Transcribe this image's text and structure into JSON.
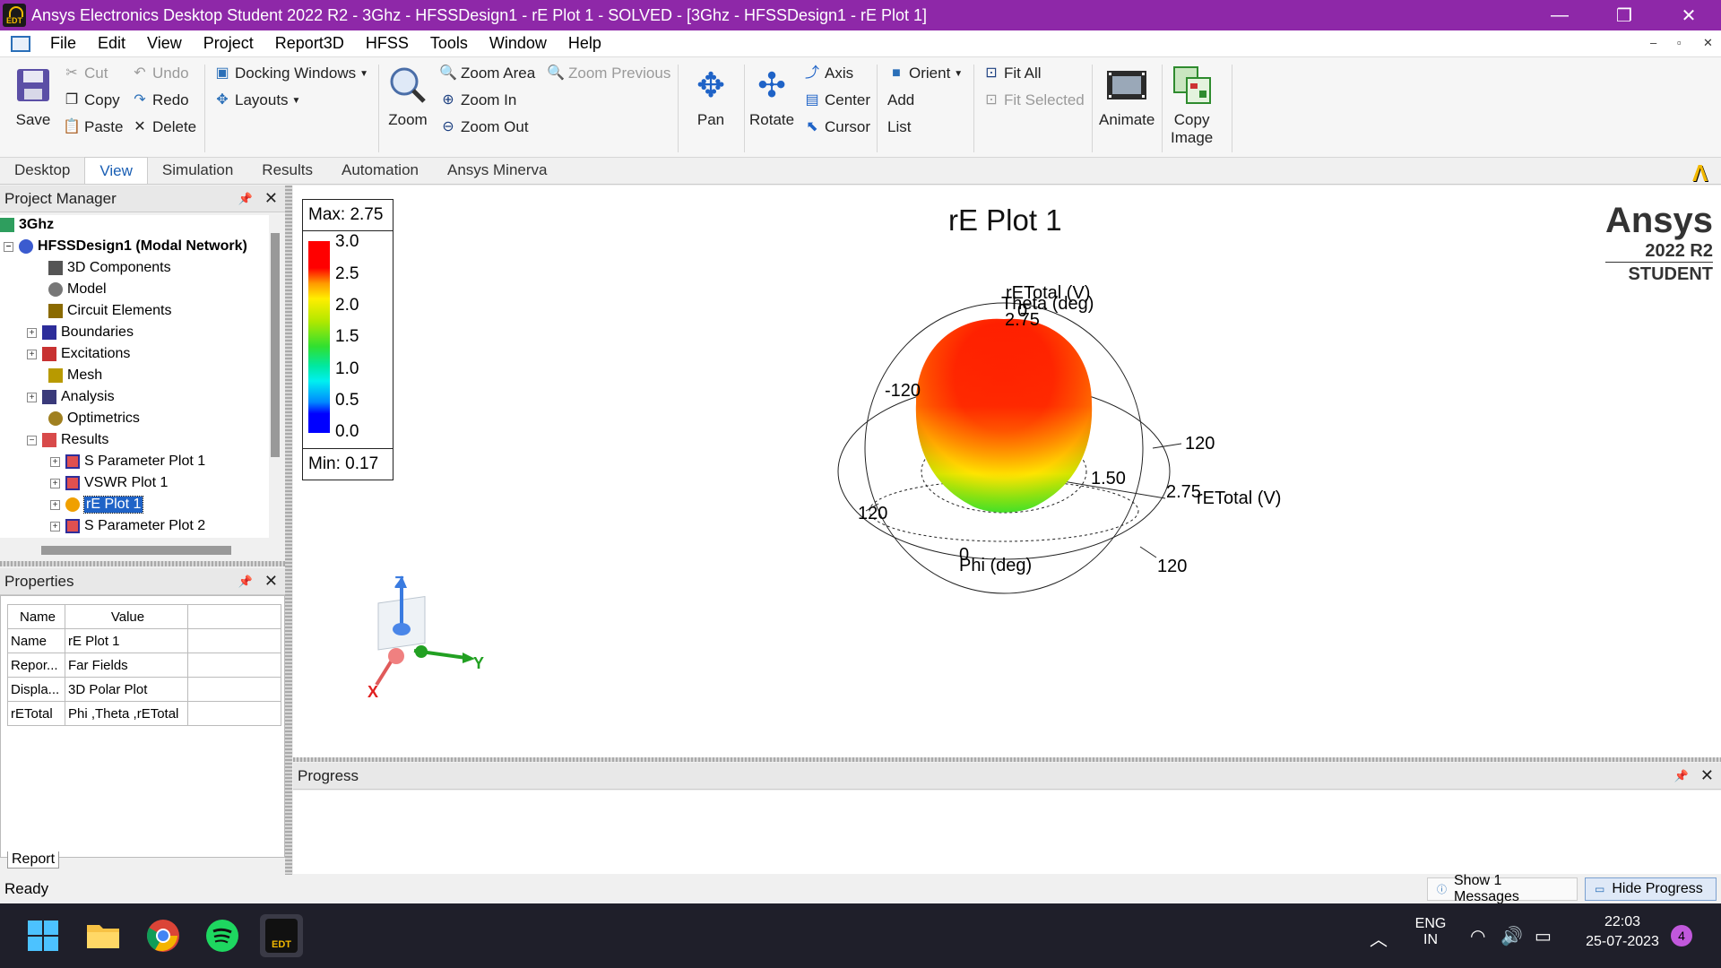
{
  "window": {
    "title": "Ansys Electronics Desktop Student 2022 R2 - 3Ghz - HFSSDesign1 - rE Plot 1 - SOLVED - [3Ghz - HFSSDesign1 - rE Plot 1]",
    "app_icon_text": "EDT",
    "minimize": "—",
    "restore": "❐",
    "close": "✕"
  },
  "menu": [
    "File",
    "Edit",
    "View",
    "Project",
    "Report3D",
    "HFSS",
    "Tools",
    "Window",
    "Help"
  ],
  "mdi_controls": {
    "minimize": "–",
    "restore": "▫",
    "close": "✕"
  },
  "ribbon": {
    "save": "Save",
    "cut": "Cut",
    "copy": "Copy",
    "paste": "Paste",
    "undo": "Undo",
    "redo": "Redo",
    "delete": "Delete",
    "docking_windows": "Docking Windows",
    "layouts": "Layouts",
    "zoom": "Zoom",
    "zoom_area": "Zoom Area",
    "zoom_in": "Zoom In",
    "zoom_out": "Zoom Out",
    "zoom_previous": "Zoom Previous",
    "pan": "Pan",
    "rotate": "Rotate",
    "axis": "Axis",
    "center": "Center",
    "cursor": "Cursor",
    "orient": "Orient",
    "add": "Add",
    "list": "List",
    "fit_all": "Fit All",
    "fit_selected": "Fit Selected",
    "animate": "Animate",
    "copy_image_1": "Copy",
    "copy_image_2": "Image"
  },
  "tabs": [
    "Desktop",
    "View",
    "Simulation",
    "Results",
    "Automation",
    "Ansys Minerva"
  ],
  "active_tab": "View",
  "project_manager": {
    "title": "Project Manager",
    "tree": [
      {
        "label": "3Ghz",
        "level": 0,
        "bold": true,
        "expander": ""
      },
      {
        "label": "HFSSDesign1 (Modal Network)",
        "level": 1,
        "bold": true,
        "expander": "−"
      },
      {
        "label": "3D Components",
        "level": 2,
        "expander": ""
      },
      {
        "label": "Model",
        "level": 2,
        "expander": ""
      },
      {
        "label": "Circuit Elements",
        "level": 2,
        "expander": ""
      },
      {
        "label": "Boundaries",
        "level": 2,
        "expander": "+"
      },
      {
        "label": "Excitations",
        "level": 2,
        "expander": "+"
      },
      {
        "label": "Mesh",
        "level": 2,
        "expander": ""
      },
      {
        "label": "Analysis",
        "level": 2,
        "expander": "+"
      },
      {
        "label": "Optimetrics",
        "level": 2,
        "expander": ""
      },
      {
        "label": "Results",
        "level": 2,
        "expander": "−"
      },
      {
        "label": "S Parameter Plot 1",
        "level": 3,
        "expander": "+"
      },
      {
        "label": "VSWR Plot 1",
        "level": 3,
        "expander": "+"
      },
      {
        "label": "rE Plot 1",
        "level": 3,
        "expander": "+",
        "selected": true
      },
      {
        "label": "S Parameter Plot 2",
        "level": 3,
        "expander": "+"
      }
    ]
  },
  "properties": {
    "title": "Properties",
    "header": {
      "name": "Name",
      "value": "Value"
    },
    "rows": [
      {
        "name": "Name",
        "value": "rE Plot 1"
      },
      {
        "name": "Repor...",
        "value": "Far Fields"
      },
      {
        "name": "Displa...",
        "value": "3D Polar Plot"
      },
      {
        "name": "rETotal",
        "value": "Phi ,Theta ,rETotal"
      }
    ],
    "tab": "Report"
  },
  "plot": {
    "title": "rE Plot 1",
    "legend": {
      "max_label": "Max: 2.75",
      "min_label": "Min: 0.17",
      "ticks": [
        "3.0",
        "2.5",
        "2.0",
        "1.5",
        "1.0",
        "0.5",
        "0.0"
      ]
    },
    "labels": {
      "retotal_top": "rETotal (V)",
      "theta": "Theta (deg)",
      "value_top": "2.75",
      "zero_top": "0",
      "neg120": "-120",
      "right120": "120",
      "mid150": "1.50",
      "right275": "2.75",
      "retotal_right": "rETotal (V)",
      "left120": "120",
      "zero_bottom": "0",
      "phi": "Phi (deg)",
      "bottom120": "120"
    },
    "axes": {
      "z": "Z",
      "y": "Y",
      "x": "X"
    },
    "brand": {
      "name": "Ansys",
      "version": "2022 R2",
      "edition": "STUDENT"
    },
    "colors": {
      "high": "#ff0000",
      "mid": "#ffee00",
      "low": "#30e030"
    }
  },
  "progress": {
    "title": "Progress"
  },
  "status": {
    "text": "Ready",
    "show_messages": "Show 1 Messages",
    "hide_progress": "Hide Progress"
  },
  "taskbar": {
    "edt_label": "EDT",
    "lang_1": "ENG",
    "lang_2": "IN",
    "time": "22:03",
    "date": "25-07-2023",
    "badge": "4"
  }
}
